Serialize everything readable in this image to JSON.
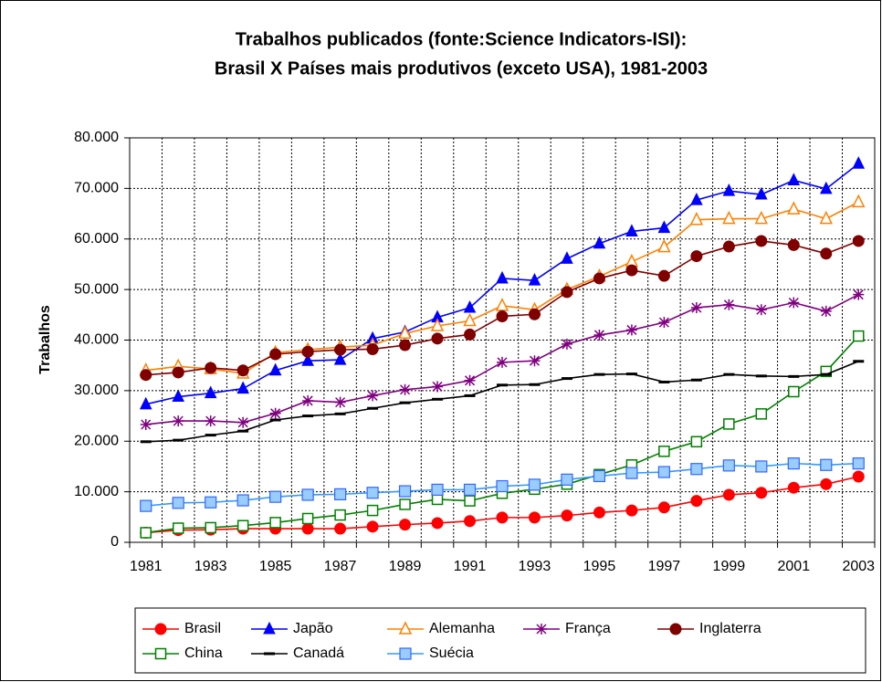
{
  "chart_data": {
    "type": "line",
    "title": [
      "Trabalhos publicados (fonte:Science Indicators-ISI):",
      "Brasil X Países mais produtivos (exceto USA), 1981-2003"
    ],
    "y_label": "Trabalhos",
    "categories": [
      "1981",
      null,
      "1983",
      null,
      "1985",
      null,
      "1987",
      null,
      "1989",
      null,
      "1991",
      null,
      "1993",
      null,
      "1995",
      null,
      "1997",
      null,
      "1999",
      null,
      "2001",
      null,
      "2003"
    ],
    "ylim": [
      0,
      80000
    ],
    "yticks": [
      0,
      {
        "value": 10000,
        "label": "10.000"
      },
      {
        "value": 20000,
        "label": "20.000"
      },
      {
        "value": 30000,
        "label": "30.000"
      },
      {
        "value": 40000,
        "label": "40.000"
      },
      {
        "value": 50000,
        "label": "50.000"
      },
      {
        "value": 60000,
        "label": "60.000"
      },
      {
        "value": 70000,
        "label": "70.000"
      },
      {
        "value": 80000,
        "label": "80.000"
      }
    ],
    "grid": true,
    "legend": "bottom",
    "series": [
      {
        "name": "Brasil",
        "color": "#ff0000",
        "marker": "circle",
        "values": [
          1900,
          2400,
          2500,
          2700,
          2700,
          2700,
          2700,
          3100,
          3500,
          3800,
          4200,
          4900,
          4900,
          5300,
          5900,
          6300,
          6900,
          8200,
          9400,
          9800,
          10800,
          11500,
          13000
        ]
      },
      {
        "name": "Japão",
        "color": "#0000ff",
        "marker": "triangle",
        "values": [
          27300,
          28800,
          29500,
          30400,
          34000,
          35900,
          36100,
          40300,
          41600,
          44500,
          46400,
          52200,
          51800,
          56100,
          59100,
          61500,
          62200,
          67700,
          69500,
          68800,
          71600,
          69900,
          74900
        ]
      },
      {
        "name": "Alemanha",
        "color": "#ff8000",
        "marker": "triangle-open",
        "values": [
          34000,
          34800,
          34300,
          33400,
          37500,
          38100,
          38600,
          39000,
          41300,
          42800,
          43800,
          46800,
          46000,
          50000,
          52600,
          55500,
          58400,
          63800,
          64000,
          64000,
          65900,
          64000,
          67300
        ]
      },
      {
        "name": "França",
        "color": "#800080",
        "marker": "star",
        "values": [
          23300,
          24000,
          24000,
          23700,
          25500,
          28000,
          27700,
          29000,
          30200,
          30800,
          32000,
          35600,
          35900,
          39200,
          41000,
          42000,
          43500,
          46400,
          47000,
          46000,
          47400,
          45700,
          49000
        ]
      },
      {
        "name": "Inglaterra",
        "color": "#800000",
        "marker": "circle",
        "values": [
          33100,
          33600,
          34500,
          34000,
          37200,
          37700,
          38100,
          38200,
          39000,
          40300,
          41100,
          44700,
          45100,
          49500,
          52200,
          53800,
          52700,
          56600,
          58500,
          59600,
          58800,
          57100,
          59600
        ]
      },
      {
        "name": "China",
        "color": "#008000",
        "marker": "square-open",
        "values": [
          1900,
          2800,
          2900,
          3300,
          3900,
          4700,
          5400,
          6300,
          7500,
          8500,
          8200,
          9700,
          10500,
          11500,
          13400,
          15300,
          18000,
          19900,
          23400,
          25400,
          29800,
          33800,
          40800
        ]
      },
      {
        "name": "Canadá",
        "color": "#000000",
        "marker": "dash",
        "values": [
          19900,
          20200,
          21200,
          22000,
          24200,
          25000,
          25400,
          26500,
          27600,
          28300,
          29000,
          31100,
          31200,
          32400,
          33200,
          33300,
          31700,
          32100,
          33200,
          32900,
          32800,
          33200,
          35800
        ]
      },
      {
        "name": "Suécia",
        "color": "#3399ff",
        "marker": "square",
        "values": [
          7200,
          7800,
          7900,
          8300,
          9000,
          9400,
          9500,
          9800,
          10100,
          10400,
          10400,
          11100,
          11400,
          12400,
          13100,
          13700,
          13900,
          14500,
          15200,
          15000,
          15600,
          15300,
          15600
        ]
      }
    ]
  }
}
